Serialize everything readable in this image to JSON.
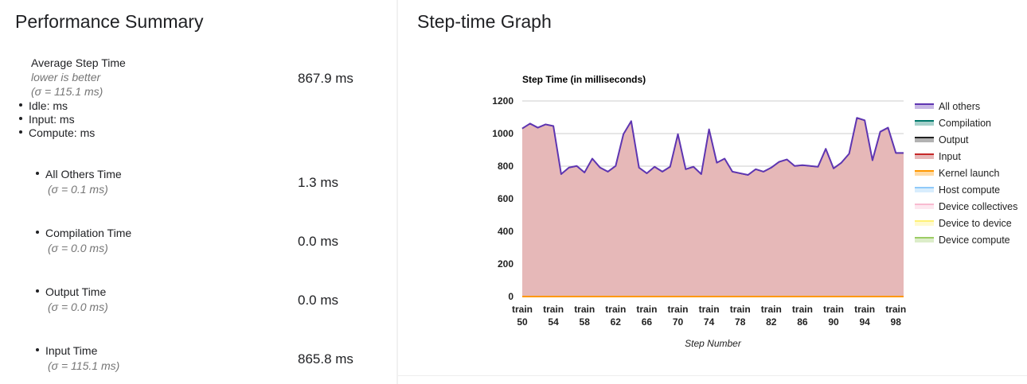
{
  "summary": {
    "title": "Performance Summary",
    "avg": {
      "label": "Average Step Time",
      "note": "lower is better",
      "sigma": "(σ = 115.1 ms)",
      "value": "867.9 ms",
      "sub_items": [
        "Idle: ms",
        "Input: ms",
        "Compute: ms"
      ]
    },
    "metrics": [
      {
        "label": "All Others Time",
        "sigma": "(σ = 0.1 ms)",
        "value": "1.3 ms"
      },
      {
        "label": "Compilation Time",
        "sigma": "(σ = 0.0 ms)",
        "value": "0.0 ms"
      },
      {
        "label": "Output Time",
        "sigma": "(σ = 0.0 ms)",
        "value": "0.0 ms"
      },
      {
        "label": "Input Time",
        "sigma": "(σ = 115.1 ms)",
        "value": "865.8 ms"
      }
    ]
  },
  "graph": {
    "title": "Step-time Graph"
  },
  "chart_data": {
    "type": "area",
    "title": "Step Time (in milliseconds)",
    "xlabel": "Step Number",
    "ylabel": "",
    "ylim": [
      0,
      1200
    ],
    "yticks": [
      0,
      200,
      400,
      600,
      800,
      1000,
      1200
    ],
    "x": [
      "train 50",
      "train 51",
      "train 52",
      "train 53",
      "train 54",
      "train 55",
      "train 56",
      "train 57",
      "train 58",
      "train 59",
      "train 60",
      "train 61",
      "train 62",
      "train 63",
      "train 64",
      "train 65",
      "train 66",
      "train 67",
      "train 68",
      "train 69",
      "train 70",
      "train 71",
      "train 72",
      "train 73",
      "train 74",
      "train 75",
      "train 76",
      "train 77",
      "train 78",
      "train 79",
      "train 80",
      "train 81",
      "train 82",
      "train 83",
      "train 84",
      "train 85",
      "train 86",
      "train 87",
      "train 88",
      "train 89",
      "train 90",
      "train 91",
      "train 92",
      "train 93",
      "train 94",
      "train 95",
      "train 96",
      "train 97",
      "train 98",
      "train 99"
    ],
    "x_tick_labels": [
      "train 50",
      "train 54",
      "train 58",
      "train 62",
      "train 66",
      "train 70",
      "train 74",
      "train 78",
      "train 82",
      "train 86",
      "train 90",
      "train 94",
      "train 98"
    ],
    "stacked": true,
    "legend_position": "right",
    "series": [
      {
        "name": "Device compute",
        "color": "#9ccc65",
        "values": [
          0,
          0,
          0,
          0,
          0,
          0,
          0,
          0,
          0,
          0,
          0,
          0,
          0,
          0,
          0,
          0,
          0,
          0,
          0,
          0,
          0,
          0,
          0,
          0,
          0,
          0,
          0,
          0,
          0,
          0,
          0,
          0,
          0,
          0,
          0,
          0,
          0,
          0,
          0,
          0,
          0,
          0,
          0,
          0,
          0,
          0,
          0,
          0,
          0,
          0
        ]
      },
      {
        "name": "Device to device",
        "color": "#fff176",
        "values": [
          0,
          0,
          0,
          0,
          0,
          0,
          0,
          0,
          0,
          0,
          0,
          0,
          0,
          0,
          0,
          0,
          0,
          0,
          0,
          0,
          0,
          0,
          0,
          0,
          0,
          0,
          0,
          0,
          0,
          0,
          0,
          0,
          0,
          0,
          0,
          0,
          0,
          0,
          0,
          0,
          0,
          0,
          0,
          0,
          0,
          0,
          0,
          0,
          0,
          0
        ]
      },
      {
        "name": "Device collectives",
        "color": "#f8bbd0",
        "values": [
          0,
          0,
          0,
          0,
          0,
          0,
          0,
          0,
          0,
          0,
          0,
          0,
          0,
          0,
          0,
          0,
          0,
          0,
          0,
          0,
          0,
          0,
          0,
          0,
          0,
          0,
          0,
          0,
          0,
          0,
          0,
          0,
          0,
          0,
          0,
          0,
          0,
          0,
          0,
          0,
          0,
          0,
          0,
          0,
          0,
          0,
          0,
          0,
          0,
          0
        ]
      },
      {
        "name": "Host compute",
        "color": "#90caf9",
        "values": [
          0,
          0,
          0,
          0,
          0,
          0,
          0,
          0,
          0,
          0,
          0,
          0,
          0,
          0,
          0,
          0,
          0,
          0,
          0,
          0,
          0,
          0,
          0,
          0,
          0,
          0,
          0,
          0,
          0,
          0,
          0,
          0,
          0,
          0,
          0,
          0,
          0,
          0,
          0,
          0,
          0,
          0,
          0,
          0,
          0,
          0,
          0,
          0,
          0,
          0
        ]
      },
      {
        "name": "Kernel launch",
        "color": "#ff9800",
        "values": [
          0,
          0,
          0,
          0,
          0,
          0,
          0,
          0,
          0,
          0,
          0,
          0,
          0,
          0,
          0,
          0,
          0,
          0,
          0,
          0,
          0,
          0,
          0,
          0,
          0,
          0,
          0,
          0,
          0,
          0,
          0,
          0,
          0,
          0,
          0,
          0,
          0,
          0,
          0,
          0,
          0,
          0,
          0,
          0,
          0,
          0,
          0,
          0,
          0,
          0
        ]
      },
      {
        "name": "Input",
        "color": "#c62828",
        "fill": "#e6b8b8",
        "values": [
          1030,
          1060,
          1035,
          1055,
          1045,
          750,
          790,
          800,
          760,
          845,
          790,
          765,
          800,
          995,
          1075,
          790,
          755,
          795,
          765,
          795,
          995,
          780,
          795,
          750,
          1025,
          820,
          845,
          765,
          755,
          745,
          780,
          765,
          790,
          825,
          840,
          800,
          805,
          800,
          795,
          905,
          785,
          820,
          875,
          1095,
          1080,
          835,
          1010,
          1035,
          880,
          880
        ]
      },
      {
        "name": "Output",
        "color": "#212121",
        "values": [
          0,
          0,
          0,
          0,
          0,
          0,
          0,
          0,
          0,
          0,
          0,
          0,
          0,
          0,
          0,
          0,
          0,
          0,
          0,
          0,
          0,
          0,
          0,
          0,
          0,
          0,
          0,
          0,
          0,
          0,
          0,
          0,
          0,
          0,
          0,
          0,
          0,
          0,
          0,
          0,
          0,
          0,
          0,
          0,
          0,
          0,
          0,
          0,
          0,
          0
        ]
      },
      {
        "name": "Compilation",
        "color": "#00796b",
        "values": [
          0,
          0,
          0,
          0,
          0,
          0,
          0,
          0,
          0,
          0,
          0,
          0,
          0,
          0,
          0,
          0,
          0,
          0,
          0,
          0,
          0,
          0,
          0,
          0,
          0,
          0,
          0,
          0,
          0,
          0,
          0,
          0,
          0,
          0,
          0,
          0,
          0,
          0,
          0,
          0,
          0,
          0,
          0,
          0,
          0,
          0,
          0,
          0,
          0,
          0
        ]
      },
      {
        "name": "All others",
        "color": "#5e35b1",
        "values": [
          1.3,
          1.3,
          1.3,
          1.3,
          1.3,
          1.3,
          1.3,
          1.3,
          1.3,
          1.3,
          1.3,
          1.3,
          1.3,
          1.3,
          1.3,
          1.3,
          1.3,
          1.3,
          1.3,
          1.3,
          1.3,
          1.3,
          1.3,
          1.3,
          1.3,
          1.3,
          1.3,
          1.3,
          1.3,
          1.3,
          1.3,
          1.3,
          1.3,
          1.3,
          1.3,
          1.3,
          1.3,
          1.3,
          1.3,
          1.3,
          1.3,
          1.3,
          1.3,
          1.3,
          1.3,
          1.3,
          1.3,
          1.3,
          1.3,
          1.3
        ]
      }
    ],
    "legend_order": [
      "All others",
      "Compilation",
      "Output",
      "Input",
      "Kernel launch",
      "Host compute",
      "Device collectives",
      "Device to device",
      "Device compute"
    ]
  }
}
